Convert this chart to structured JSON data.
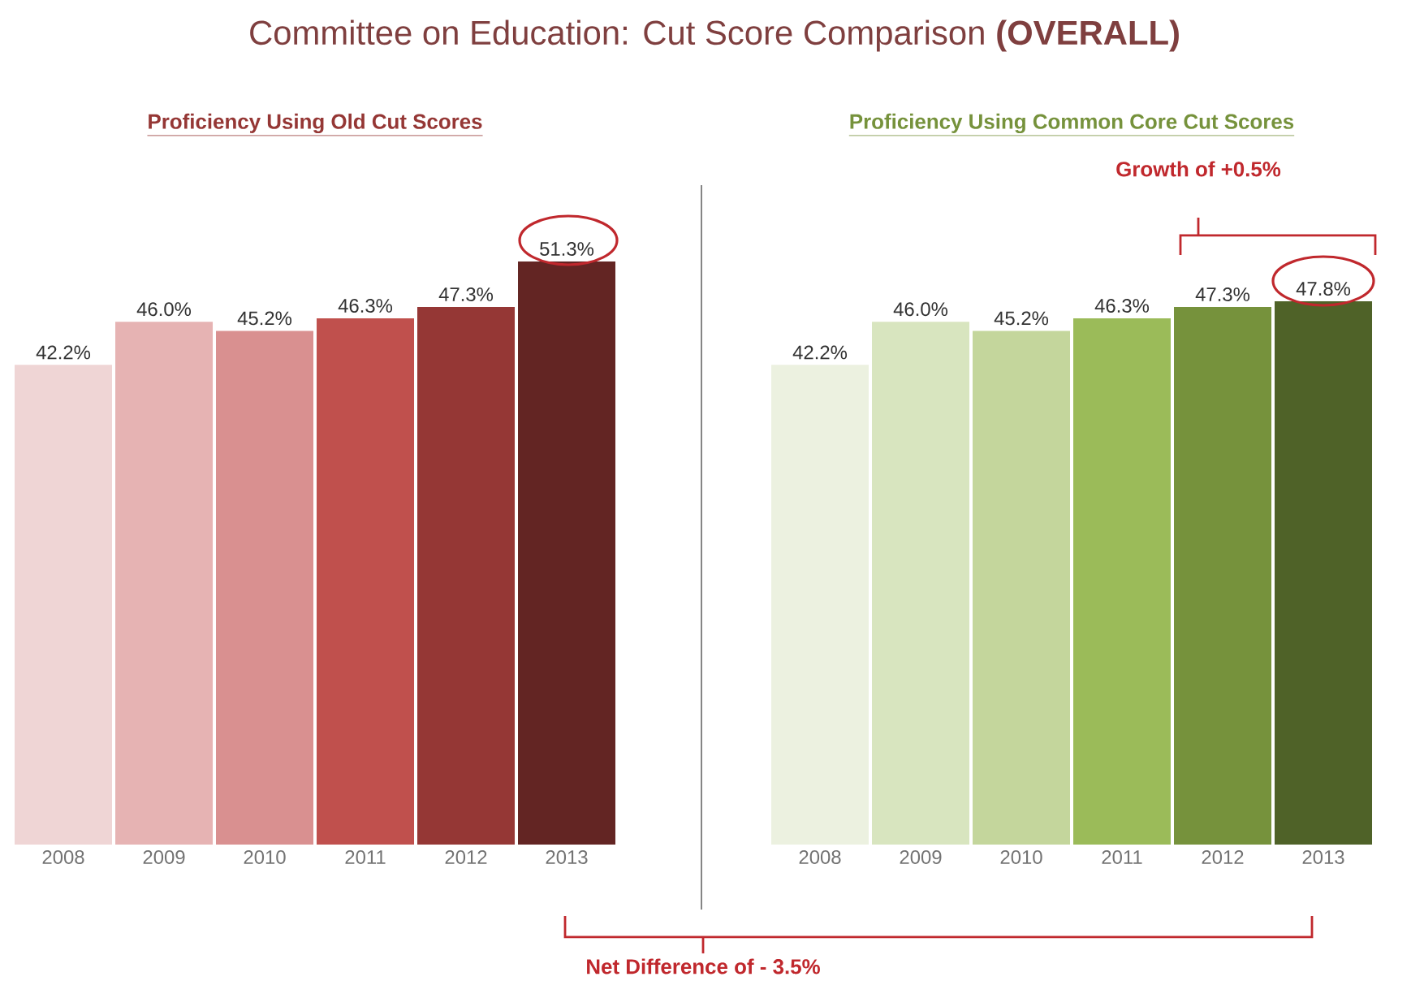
{
  "chart_data": [
    {
      "type": "bar",
      "title": "Committee on Education: Cut Score Comparison **(OVERALL)**",
      "subtitle": "Proficiency Using Old Cut Scores",
      "categories": [
        "2008",
        "2009",
        "2010",
        "2011",
        "2012",
        "2013"
      ],
      "values": [
        42.2,
        46.0,
        45.2,
        46.3,
        47.3,
        51.3
      ],
      "colors": [
        "#efd5d5",
        "#e6b3b3",
        "#d99090",
        "#c0504d",
        "#953735",
        "#632523"
      ],
      "value_labels": [
        "42.2%",
        "46.0%",
        "45.2%",
        "46.3%",
        "47.3%",
        "51.3%"
      ]
    },
    {
      "type": "bar",
      "title": "Proficiency Using Common Core Cut Scores",
      "categories": [
        "2008",
        "2009",
        "2010",
        "2011",
        "2012",
        "2013"
      ],
      "values": [
        42.2,
        46.0,
        45.2,
        46.3,
        47.3,
        47.8
      ],
      "colors": [
        "#ecf1e0",
        "#d8e5bf",
        "#c4d69c",
        "#9bbb59",
        "#76923c",
        "#4f6228"
      ],
      "value_labels": [
        "42.2%",
        "46.0%",
        "45.2%",
        "46.3%",
        "47.3%",
        "47.8%"
      ],
      "annotations": [
        "Growth of +0.5%",
        "Net Difference of - 3.5%"
      ]
    }
  ]
}
